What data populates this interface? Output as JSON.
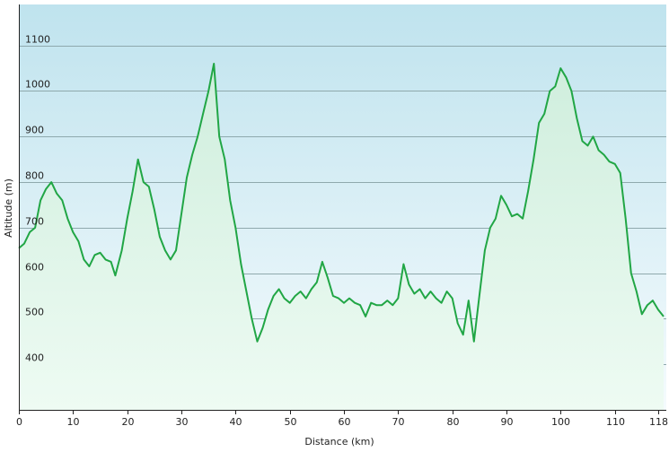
{
  "chart_data": {
    "type": "area",
    "title": "",
    "xlabel": "Distance  (km)",
    "ylabel": "Altitude (m)",
    "xlim": [
      0,
      119.5
    ],
    "ylim": [
      300,
      1190
    ],
    "x_ticks": [
      0,
      10,
      20,
      30,
      40,
      50,
      60,
      70,
      80,
      90,
      100,
      110,
      118
    ],
    "x_tick_labels": [
      "0",
      "10",
      "20",
      "30",
      "40",
      "50",
      "60",
      "70",
      "80",
      "90",
      "100",
      "110",
      "118"
    ],
    "y_ticks": [
      400,
      500,
      600,
      700,
      800,
      900,
      1000,
      1100
    ],
    "y_tick_labels": [
      "400",
      "500",
      "600",
      "700",
      "800",
      "900",
      "1000",
      "1100"
    ],
    "grid": true,
    "legend": "none",
    "colors": {
      "line": "#21a645",
      "fill_top": "#cfeedd",
      "fill_bottom": "#eefbf3",
      "bg_top": "#bfe3ee",
      "bg_bottom": "#f5fbfd",
      "grid": "#8fa9ad"
    },
    "series": [
      {
        "x": [
          0,
          1,
          2,
          3,
          4,
          5,
          6,
          7,
          8,
          9,
          10,
          11,
          12,
          13,
          14,
          15,
          16,
          17,
          17.8,
          19,
          20,
          21,
          22,
          23,
          24,
          25,
          26,
          27,
          28,
          29,
          30,
          31,
          32,
          33,
          34,
          35,
          36,
          37,
          38,
          39,
          40,
          41,
          42,
          43,
          44,
          45,
          46,
          47,
          48,
          49,
          50,
          51,
          52,
          53,
          54,
          55,
          56,
          57,
          58,
          59,
          60,
          61,
          62,
          63,
          64,
          65,
          66,
          67,
          68,
          69,
          70,
          71,
          72,
          73,
          74,
          75,
          76,
          77,
          78,
          79,
          80,
          81,
          82,
          83,
          84,
          85,
          86,
          87,
          88,
          89,
          90,
          91,
          92,
          93,
          94,
          95,
          96,
          97,
          98,
          99,
          100,
          101,
          102,
          103,
          104,
          105,
          106,
          107,
          108,
          109,
          110,
          111,
          112,
          113,
          114,
          115,
          116,
          117,
          118,
          119
        ],
        "y": [
          655,
          665,
          690,
          700,
          760,
          785,
          800,
          775,
          760,
          720,
          690,
          670,
          630,
          615,
          640,
          645,
          630,
          625,
          595,
          650,
          720,
          780,
          850,
          800,
          790,
          740,
          680,
          650,
          630,
          650,
          730,
          810,
          860,
          900,
          950,
          1000,
          1060,
          900,
          850,
          760,
          700,
          620,
          560,
          500,
          450,
          480,
          520,
          550,
          565,
          545,
          535,
          550,
          560,
          545,
          565,
          580,
          625,
          590,
          550,
          545,
          535,
          545,
          535,
          530,
          505,
          535,
          530,
          530,
          540,
          530,
          545,
          620,
          575,
          555,
          565,
          545,
          560,
          545,
          535,
          560,
          545,
          490,
          465,
          540,
          450,
          550,
          650,
          700,
          720,
          770,
          750,
          725,
          730,
          720,
          780,
          850,
          930,
          950,
          1000,
          1010,
          1050,
          1030,
          1000,
          940,
          890,
          880,
          900,
          870,
          860,
          845,
          840,
          820,
          720,
          600,
          560,
          510,
          530,
          540,
          520,
          505
        ]
      }
    ]
  }
}
